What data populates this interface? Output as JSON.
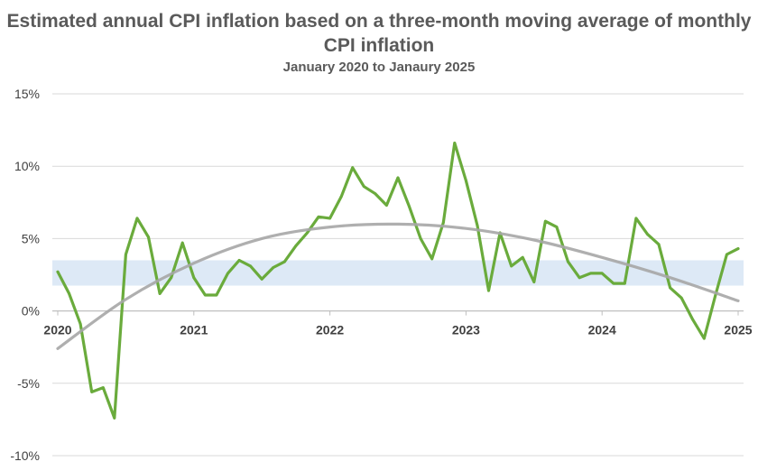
{
  "chart_data": {
    "type": "line",
    "title": "Estimated annual CPI inflation based on a three-month moving average of monthly CPI inflation",
    "subtitle": "January 2020 to Janaury 2025",
    "xlabel": "",
    "ylabel": "",
    "x_tick_labels": [
      "2020",
      "2021",
      "2022",
      "2023",
      "2024",
      "2025"
    ],
    "y_tick_labels": [
      "15%",
      "10%",
      "5%",
      "0%",
      "-5%",
      "-10%"
    ],
    "y_ticks": [
      15,
      10,
      5,
      0,
      -5,
      -10
    ],
    "ylim": [
      -10,
      15
    ],
    "grid": "horizontal",
    "legend": "none",
    "target_band": [
      1.75,
      3.5
    ],
    "series": [
      {
        "color": "#6aab3c",
        "x": [
          "2020-01",
          "2020-02",
          "2020-03",
          "2020-04",
          "2020-05",
          "2020-06",
          "2020-07",
          "2020-08",
          "2020-09",
          "2020-10",
          "2020-11",
          "2020-12",
          "2021-01",
          "2021-02",
          "2021-03",
          "2021-04",
          "2021-05",
          "2021-06",
          "2021-07",
          "2021-08",
          "2021-09",
          "2021-10",
          "2021-11",
          "2021-12",
          "2022-01",
          "2022-02",
          "2022-03",
          "2022-04",
          "2022-05",
          "2022-06",
          "2022-07",
          "2022-08",
          "2022-09",
          "2022-10",
          "2022-11",
          "2022-12",
          "2023-01",
          "2023-02",
          "2023-03",
          "2023-04",
          "2023-05",
          "2023-06",
          "2023-07",
          "2023-08",
          "2023-09",
          "2023-10",
          "2023-11",
          "2023-12",
          "2024-01",
          "2024-02",
          "2024-03",
          "2024-04",
          "2024-05",
          "2024-06",
          "2024-07",
          "2024-08",
          "2024-09",
          "2024-10",
          "2024-11",
          "2024-12",
          "2025-01"
        ],
        "values": [
          2.7,
          1.2,
          -0.9,
          -5.6,
          -5.3,
          -7.4,
          3.9,
          6.4,
          5.1,
          1.2,
          2.3,
          4.7,
          2.3,
          1.1,
          1.1,
          2.6,
          3.5,
          3.1,
          2.2,
          3.0,
          3.4,
          4.5,
          5.4,
          6.5,
          6.4,
          7.9,
          9.9,
          8.6,
          8.1,
          7.3,
          9.2,
          7.2,
          5.0,
          3.6,
          6.1,
          11.6,
          9.0,
          5.9,
          1.4,
          5.4,
          3.1,
          3.7,
          2.0,
          6.2,
          5.8,
          3.4,
          2.3,
          2.6,
          2.6,
          1.9,
          1.9,
          6.4,
          5.3,
          4.6,
          1.6,
          0.9,
          -0.6,
          -1.9,
          1.1,
          3.9,
          4.3
        ]
      },
      {
        "color": "#a6a6a6",
        "trend": "polynomial",
        "x": [
          "2020-01",
          "2020-07",
          "2021-01",
          "2021-07",
          "2022-01",
          "2022-07",
          "2023-01",
          "2023-07",
          "2024-01",
          "2024-07",
          "2025-01"
        ],
        "values": [
          -2.6,
          0.8,
          3.3,
          5.0,
          5.8,
          6.0,
          5.7,
          4.9,
          3.7,
          2.3,
          0.7
        ]
      }
    ]
  }
}
